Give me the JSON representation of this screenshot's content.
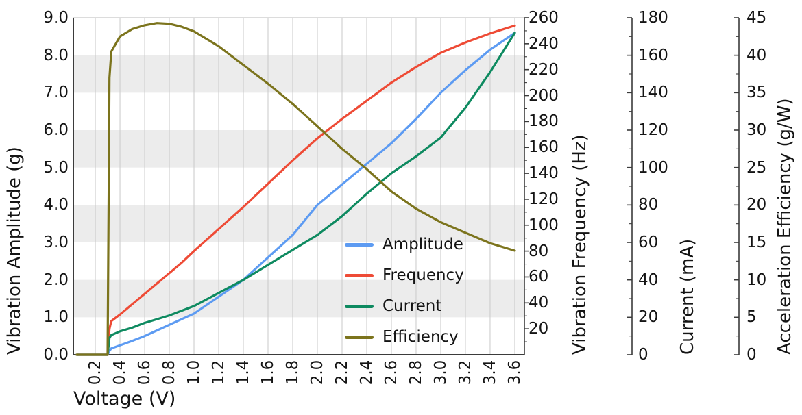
{
  "chart_data": {
    "type": "line",
    "xlabel": "Voltage (V)",
    "x_tick_labels": [
      "0.2",
      "0.4",
      "0.6",
      "0.8",
      "1.0",
      "1.2",
      "1.4",
      "1.6",
      "1.8",
      "2.0",
      "2.2",
      "2.4",
      "2.6",
      "2.8",
      "3.0",
      "3.2",
      "3.4",
      "3.6"
    ],
    "x_range": [
      0.022,
      3.678
    ],
    "x": [
      0.05,
      0.3,
      0.315,
      0.33,
      0.4,
      0.5,
      0.6,
      0.7,
      0.8,
      0.9,
      1.0,
      1.2,
      1.4,
      1.6,
      1.8,
      2.0,
      2.2,
      2.4,
      2.6,
      2.8,
      3.0,
      3.2,
      3.4,
      3.6
    ],
    "series": [
      {
        "name": "Amplitude",
        "axis": "amplitude",
        "color": "#5d9bf2",
        "values": [
          0,
          0,
          0.1,
          0.17,
          0.25,
          0.37,
          0.5,
          0.65,
          0.8,
          0.95,
          1.1,
          1.55,
          2.0,
          2.6,
          3.2,
          4.0,
          4.55,
          5.1,
          5.65,
          6.3,
          7.0,
          7.6,
          8.15,
          8.6
        ]
      },
      {
        "name": "Frequency",
        "axis": "frequency",
        "color": "#ee4b36",
        "values": [
          0,
          0,
          20,
          26,
          31,
          39,
          47,
          55,
          63,
          71,
          80,
          97,
          114,
          132,
          150,
          167,
          182,
          196,
          210,
          222,
          233,
          241,
          248,
          254
        ]
      },
      {
        "name": "Current",
        "axis": "current",
        "color": "#0e8a60",
        "values": [
          0,
          0,
          9,
          10.5,
          12.5,
          14.5,
          17,
          19,
          21,
          23.5,
          26,
          33,
          40,
          48,
          56,
          64,
          74,
          86,
          97,
          106,
          116,
          132,
          151,
          172
        ]
      },
      {
        "name": "Efficiency",
        "axis": "efficiency",
        "color": "#7c741d",
        "values": [
          0,
          0,
          37,
          40.5,
          42.5,
          43.5,
          44.0,
          44.3,
          44.2,
          43.8,
          43.2,
          41.2,
          38.7,
          36.2,
          33.5,
          30.5,
          27.5,
          24.8,
          21.8,
          19.5,
          17.7,
          16.3,
          14.9,
          13.9
        ]
      }
    ],
    "axes": {
      "amplitude": {
        "side": "left",
        "title": "Vibration Amplitude (g)",
        "min": 0,
        "max": 9,
        "tick_labels": [
          "0.0",
          "1.0",
          "2.0",
          "3.0",
          "4.0",
          "5.0",
          "6.0",
          "7.0",
          "8.0",
          "9.0"
        ]
      },
      "frequency": {
        "side": "right",
        "title": "Vibration Frequency (Hz)",
        "min": 0,
        "max": 260,
        "tick_labels": [
          "20",
          "40",
          "60",
          "80",
          "100",
          "120",
          "140",
          "160",
          "180",
          "200",
          "220",
          "240",
          "260"
        ]
      },
      "current": {
        "side": "right-offset1",
        "title": "Current (mA)",
        "min": 0,
        "max": 180,
        "tick_labels": [
          "0",
          "20",
          "40",
          "60",
          "80",
          "100",
          "120",
          "140",
          "160",
          "180"
        ]
      },
      "efficiency": {
        "side": "right-offset2",
        "title": "Acceleration Efficiency (g/W)",
        "min": 0,
        "max": 45,
        "tick_labels": [
          "0",
          "5",
          "10",
          "15",
          "20",
          "25",
          "30",
          "35",
          "40",
          "45"
        ]
      }
    },
    "legend": {
      "position": "inside lower-right of plot",
      "entries": [
        "Amplitude",
        "Frequency",
        "Current",
        "Efficiency"
      ]
    },
    "style": {
      "background": "#ffffff",
      "band_color": "#ececec",
      "grid_color": "#c9c9c9",
      "spine_color": "#3b3b3b",
      "top_spine_color": "#c6c6c6",
      "text_color": "#141414"
    },
    "grid": "vertical gridlines at every 0.2 V; alternating horizontal gray bands at odd amplitude intervals [1-2],[3-4],[5-6],[7-8]"
  }
}
